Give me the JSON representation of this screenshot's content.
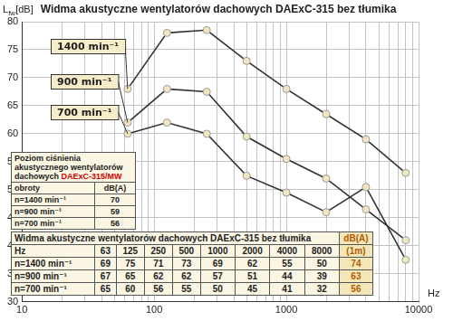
{
  "chart_data": {
    "type": "line",
    "title": "Widma akustyczne wentylatorów dachowych DAExC-315 bez tłumika",
    "y_label": [
      "L",
      "fw",
      "[dB]"
    ],
    "x_label": "Hz",
    "x": [
      63,
      125,
      250,
      500,
      1000,
      2000,
      4000,
      8000
    ],
    "series": [
      {
        "name": "1400 min⁻¹",
        "color": "#333333",
        "values": [
          68,
          78,
          78.5,
          73,
          68,
          63.5,
          59,
          53
        ]
      },
      {
        "name": "900 min⁻¹",
        "color": "#333333",
        "values": [
          62,
          68,
          67.5,
          59.5,
          55.5,
          52,
          46.5,
          41
        ]
      },
      {
        "name": "700 min⁻¹",
        "color": "#333333",
        "values": [
          60,
          62,
          60,
          52.5,
          49.5,
          46,
          50.5,
          37.5
        ]
      }
    ],
    "marker": "circle",
    "line_style": "solid",
    "log": "x",
    "xlim": [
      10,
      10000
    ],
    "xticks": [
      10,
      100,
      1000,
      10000
    ],
    "ylim": [
      30,
      80
    ],
    "yticks": [
      30,
      35,
      40,
      45,
      50,
      55,
      60,
      65,
      70,
      75,
      80
    ],
    "grid": true
  },
  "tables": [
    {
      "title": [
        "Poziom ciśnienia akustycznego wentylatorów dachowych ",
        "DAExC-315/MW"
      ],
      "header": [
        "obroty",
        "dB(A)"
      ],
      "rows": [
        [
          "n=1400 min⁻¹",
          70
        ],
        [
          "n=900 min⁻¹",
          59
        ],
        [
          "n=700 min⁻¹",
          56
        ]
      ]
    },
    {
      "title": "Widma akustyczne wentylatorów dachowych DAExC-315 bez tłumika",
      "unit": "dB(A)",
      "unit_note": "(1m)",
      "header": [
        "Hz",
        63,
        125,
        250,
        500,
        1000,
        2000,
        4000,
        8000
      ],
      "rows": [
        [
          "n=1400 min⁻¹",
          69,
          75,
          71,
          73,
          69,
          62,
          55,
          50,
          74
        ],
        [
          "n=900 min⁻¹",
          67,
          65,
          62,
          62,
          57,
          51,
          44,
          39,
          63
        ],
        [
          "n=700 min⁻¹",
          65,
          60,
          56,
          55,
          50,
          45,
          41,
          32,
          56
        ]
      ]
    }
  ]
}
